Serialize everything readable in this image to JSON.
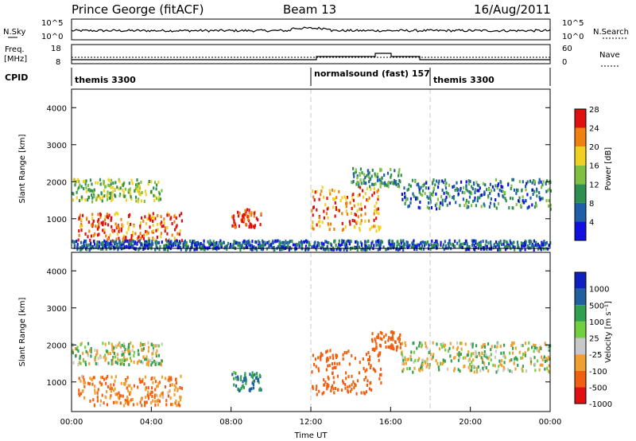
{
  "header": {
    "title": "Prince George (fitACF)",
    "beam": "Beam 13",
    "date": "16/Aug/2011"
  },
  "noise_panel": {
    "left_label": "N.Sky",
    "right_label": "N.Search",
    "left_ticks": [
      "10^5",
      "10^0"
    ],
    "right_ticks": [
      "10^5",
      "10^0"
    ]
  },
  "freq_panel": {
    "left_label_1": "Freq.",
    "left_label_2": "[MHz]",
    "right_label": "Nave",
    "left_ticks": [
      "18",
      "8"
    ],
    "right_ticks": [
      "60",
      "0"
    ],
    "freq_mhz_ylim": [
      8,
      18
    ],
    "nave_ylim": [
      0,
      60
    ]
  },
  "cpid_panel": {
    "label": "CPID",
    "segments": [
      {
        "start_hour": 0,
        "end_hour": 12,
        "text": "themis 3300"
      },
      {
        "start_hour": 12,
        "end_hour": 18,
        "text": "normalsound (fast) 157"
      },
      {
        "start_hour": 18,
        "end_hour": 24,
        "text": "themis 3300"
      }
    ]
  },
  "chart_data": [
    {
      "type": "heatmap",
      "name": "power",
      "ylabel": "Slant Range [km]",
      "xlim_hours": [
        0,
        24
      ],
      "ylim_km": [
        200,
        4500
      ],
      "yticks": [
        "1000",
        "2000",
        "3000",
        "4000"
      ],
      "colorbar": {
        "label": "Power [dB]",
        "ticks": [
          "4",
          "8",
          "12",
          "16",
          "20",
          "24",
          "28"
        ],
        "colors": [
          "#1010e0",
          "#1f5fa8",
          "#2f8f4f",
          "#7fc040",
          "#f0d020",
          "#f08010",
          "#e01010"
        ]
      },
      "echo_regions": [
        {
          "t": [
            0.0,
            4.5
          ],
          "r": [
            1500,
            2100
          ],
          "level": 16
        },
        {
          "t": [
            0.3,
            5.5
          ],
          "r": [
            400,
            1200
          ],
          "level": 26
        },
        {
          "t": [
            8.0,
            9.5
          ],
          "r": [
            800,
            1300
          ],
          "level": 28
        },
        {
          "t": [
            12.0,
            15.5
          ],
          "r": [
            700,
            1900
          ],
          "level": 24
        },
        {
          "t": [
            14.0,
            16.5
          ],
          "r": [
            1900,
            2400
          ],
          "level": 12
        },
        {
          "t": [
            16.5,
            24.0
          ],
          "r": [
            1300,
            2100
          ],
          "level": 10
        },
        {
          "t": [
            0.0,
            24.0
          ],
          "r": [
            200,
            450
          ],
          "level": 8
        }
      ]
    },
    {
      "type": "heatmap",
      "name": "velocity",
      "ylabel": "Slant Range [km]",
      "xlabel": "Time UT",
      "xlim_hours": [
        0,
        24
      ],
      "ylim_km": [
        200,
        4500
      ],
      "yticks": [
        "1000",
        "2000",
        "3000",
        "4000"
      ],
      "xticks": [
        "00:00",
        "04:00",
        "08:00",
        "12:00",
        "16:00",
        "20:00",
        "00:00"
      ],
      "colorbar": {
        "label": "Velocity [m s⁻¹]",
        "ticks": [
          "1000",
          "500",
          "100",
          "25",
          "-25",
          "-100",
          "-500",
          "-1000"
        ],
        "colors": [
          "#1020c0",
          "#2060a0",
          "#30a050",
          "#70d040",
          "#c8c8c8",
          "#f0a030",
          "#f06010",
          "#e01010"
        ]
      },
      "echo_regions": [
        {
          "t": [
            0.0,
            4.5
          ],
          "r": [
            1500,
            2100
          ],
          "velocity": 0
        },
        {
          "t": [
            0.3,
            5.5
          ],
          "r": [
            400,
            1200
          ],
          "velocity": -100
        },
        {
          "t": [
            8.0,
            9.5
          ],
          "r": [
            800,
            1300
          ],
          "velocity": 100
        },
        {
          "t": [
            12.0,
            15.5
          ],
          "r": [
            700,
            1900
          ],
          "velocity": -200
        },
        {
          "t": [
            15.0,
            16.5
          ],
          "r": [
            1900,
            2400
          ],
          "velocity": -300
        },
        {
          "t": [
            16.5,
            24.0
          ],
          "r": [
            1300,
            2100
          ],
          "velocity": 0
        }
      ]
    }
  ]
}
